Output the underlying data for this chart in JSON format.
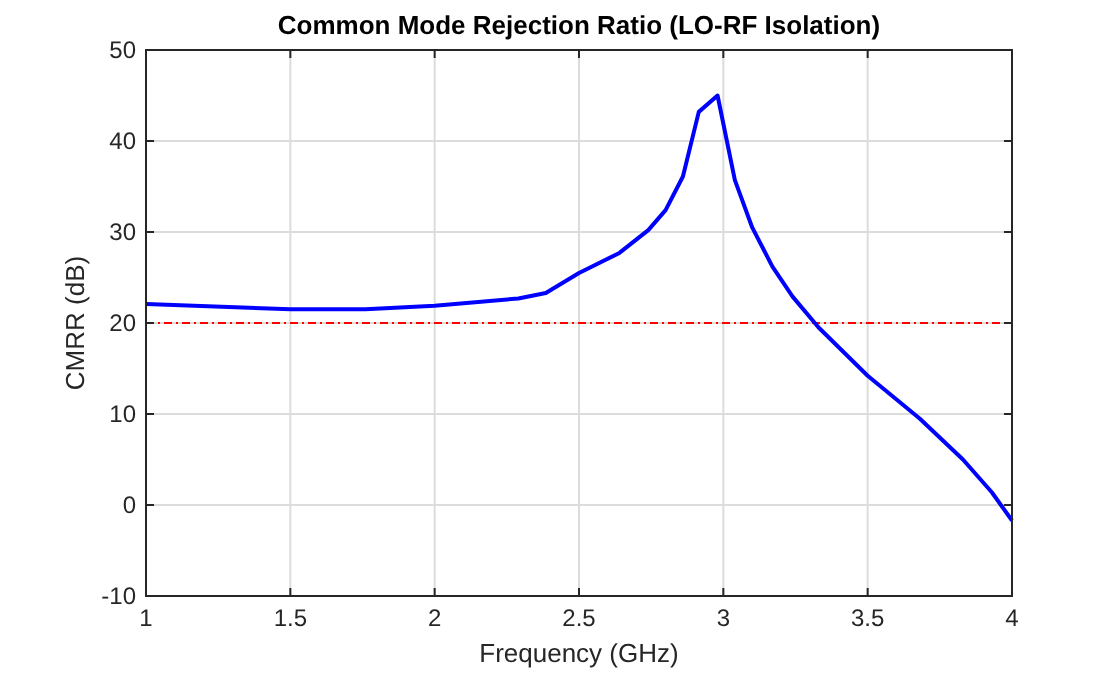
{
  "chart_data": {
    "type": "line",
    "title": "Common Mode Rejection Ratio (LO-RF Isolation)",
    "xlabel": "Frequency (GHz)",
    "ylabel": "CMRR (dB)",
    "series": [
      {
        "color": "#0000ff",
        "x": [
          1,
          1.5,
          1.76,
          2,
          2.29,
          2.385,
          2.5,
          2.64,
          2.74,
          2.8,
          2.86,
          2.915,
          2.98,
          3.04,
          3.1,
          3.17,
          3.24,
          3.33,
          3.5,
          3.68,
          3.83,
          3.93,
          4
        ],
        "values": [
          22.1,
          21.5,
          21.5,
          21.9,
          22.7,
          23.3,
          25.5,
          27.7,
          30.2,
          32.4,
          36.1,
          43.2,
          45,
          35.7,
          30.5,
          26.2,
          22.9,
          19.5,
          14.2,
          9.5,
          5,
          1.4,
          -1.7
        ]
      }
    ],
    "xlim": [
      1,
      4
    ],
    "xticks": [
      1,
      1.5,
      2,
      2.5,
      3,
      3.5,
      4
    ],
    "ylim": [
      -10,
      50
    ],
    "yticks": [
      -10,
      0,
      10,
      20,
      30,
      40,
      50
    ],
    "grid": true,
    "line_style": "solid",
    "marker": "none",
    "ref_lines": [
      {
        "axis": "y",
        "value": 20,
        "color": "#ff0000",
        "line_style": "dashed"
      }
    ]
  }
}
